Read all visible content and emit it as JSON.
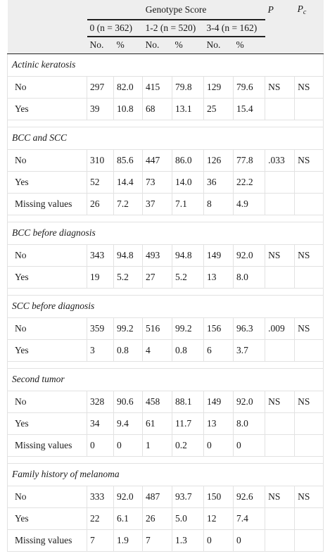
{
  "header": {
    "group_title": "Genotype Score",
    "p_label": "P",
    "pc_label": "P",
    "pc_sub": "c",
    "groups": [
      "0 (n = 362)",
      "1-2 (n = 520)",
      "3-4 (n = 162)"
    ],
    "sub_no": "No.",
    "sub_pct": "%"
  },
  "sections": [
    {
      "title": "Actinic keratosis",
      "rows": [
        {
          "label": "No",
          "vals": [
            "297",
            "82.0",
            "415",
            "79.8",
            "129",
            "79.6"
          ],
          "p": "NS",
          "pc": "NS"
        },
        {
          "label": "Yes",
          "vals": [
            "39",
            "10.8",
            "68",
            "13.1",
            "25",
            "15.4"
          ],
          "p": "",
          "pc": ""
        }
      ]
    },
    {
      "title": "BCC and SCC",
      "rows": [
        {
          "label": "No",
          "vals": [
            "310",
            "85.6",
            "447",
            "86.0",
            "126",
            "77.8"
          ],
          "p": ".033",
          "pc": "NS"
        },
        {
          "label": "Yes",
          "vals": [
            "52",
            "14.4",
            "73",
            "14.0",
            "36",
            "22.2"
          ],
          "p": "",
          "pc": ""
        },
        {
          "label": "Missing values",
          "vals": [
            "26",
            "7.2",
            "37",
            "7.1",
            "8",
            "4.9"
          ],
          "p": "",
          "pc": ""
        }
      ]
    },
    {
      "title": "BCC before diagnosis",
      "rows": [
        {
          "label": "No",
          "vals": [
            "343",
            "94.8",
            "493",
            "94.8",
            "149",
            "92.0"
          ],
          "p": "NS",
          "pc": "NS"
        },
        {
          "label": "Yes",
          "vals": [
            "19",
            "5.2",
            "27",
            "5.2",
            "13",
            "8.0"
          ],
          "p": "",
          "pc": ""
        }
      ]
    },
    {
      "title": "SCC before diagnosis",
      "rows": [
        {
          "label": "No",
          "vals": [
            "359",
            "99.2",
            "516",
            "99.2",
            "156",
            "96.3"
          ],
          "p": ".009",
          "pc": "NS"
        },
        {
          "label": "Yes",
          "vals": [
            "3",
            "0.8",
            "4",
            "0.8",
            "6",
            "3.7"
          ],
          "p": "",
          "pc": ""
        }
      ]
    },
    {
      "title": "Second tumor",
      "rows": [
        {
          "label": "No",
          "vals": [
            "328",
            "90.6",
            "458",
            "88.1",
            "149",
            "92.0"
          ],
          "p": "NS",
          "pc": "NS"
        },
        {
          "label": "Yes",
          "vals": [
            "34",
            "9.4",
            "61",
            "11.7",
            "13",
            "8.0"
          ],
          "p": "",
          "pc": ""
        },
        {
          "label": "Missing values",
          "vals": [
            "0",
            "0",
            "1",
            "0.2",
            "0",
            "0"
          ],
          "p": "",
          "pc": ""
        }
      ]
    },
    {
      "title": "Family history of melanoma",
      "rows": [
        {
          "label": "No",
          "vals": [
            "333",
            "92.0",
            "487",
            "93.7",
            "150",
            "92.6"
          ],
          "p": "NS",
          "pc": "NS"
        },
        {
          "label": "Yes",
          "vals": [
            "22",
            "6.1",
            "26",
            "5.0",
            "12",
            "7.4"
          ],
          "p": "",
          "pc": ""
        },
        {
          "label": "Missing values",
          "vals": [
            "7",
            "1.9",
            "7",
            "1.3",
            "0",
            "0"
          ],
          "p": "",
          "pc": ""
        }
      ]
    }
  ]
}
